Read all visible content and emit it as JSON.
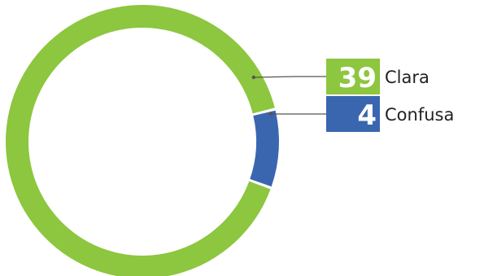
{
  "chart_data": {
    "type": "pie",
    "variant": "donut",
    "categories": [
      "Clara",
      "Confusa"
    ],
    "values": [
      39,
      4
    ],
    "colors": [
      "#8dc63f",
      "#3a66b0"
    ],
    "legend": "right"
  }
}
